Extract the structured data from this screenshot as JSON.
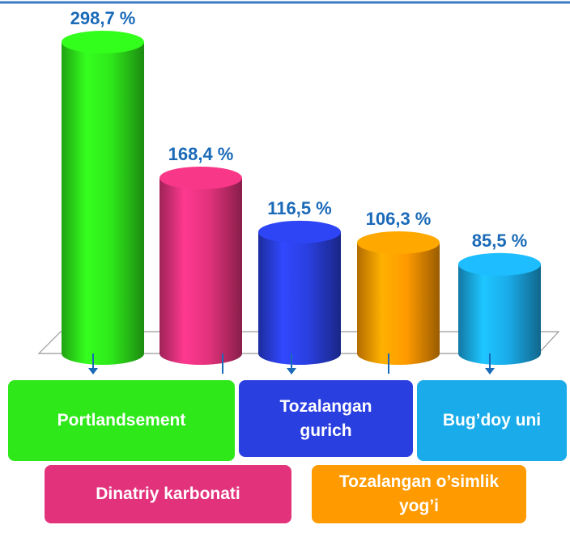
{
  "chart_data": {
    "type": "bar",
    "categories": [
      "Portlandsement",
      "Dinatriy karbonati",
      "Tozalangan gurich",
      "Tozalangan o’simlik yog’i",
      "Bug’doy uni"
    ],
    "values": [
      298.7,
      168.4,
      116.5,
      106.3,
      85.5
    ],
    "value_labels": [
      "298,7 %",
      "168,4 %",
      "116,5 %",
      "106,3 %",
      "85,5 %"
    ],
    "colors": [
      "#2ee81a",
      "#e2327c",
      "#2a3fe0",
      "#ff9a00",
      "#1aacea"
    ]
  }
}
